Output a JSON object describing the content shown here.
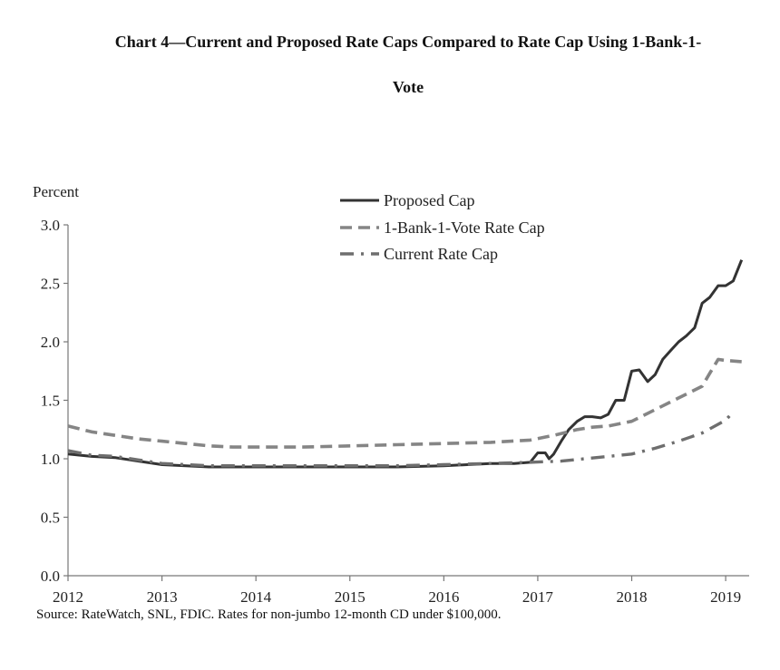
{
  "chart_data": {
    "type": "line",
    "title": "Chart 4—Current and Proposed Rate Caps Compared to Rate Cap Using 1-Bank-1-",
    "title_line2": "Vote",
    "ylabel": "Percent",
    "xlabel": "",
    "ylim": [
      0,
      3.0
    ],
    "xlim": [
      2012,
      2019.25
    ],
    "yticks": [
      "0.0",
      "0.5",
      "1.0",
      "1.5",
      "2.0",
      "2.5",
      "3.0"
    ],
    "xticks": [
      "2012",
      "2013",
      "2014",
      "2015",
      "2016",
      "2017",
      "2018",
      "2019"
    ],
    "grid": false,
    "legend_position": "top-center",
    "source": "Source: RateWatch, SNL, FDIC. Rates for non-jumbo 12-month CD under $100,000.",
    "series": [
      {
        "name": "Proposed Cap",
        "style": "solid",
        "color": "#333333",
        "x": [
          2012.0,
          2012.25,
          2012.5,
          2012.75,
          2013.0,
          2013.25,
          2013.5,
          2013.75,
          2014.0,
          2014.5,
          2015.0,
          2015.5,
          2016.0,
          2016.25,
          2016.5,
          2016.75,
          2016.92,
          2017.0,
          2017.08,
          2017.12,
          2017.17,
          2017.25,
          2017.33,
          2017.42,
          2017.5,
          2017.58,
          2017.67,
          2017.75,
          2017.83,
          2017.92,
          2018.0,
          2018.08,
          2018.17,
          2018.25,
          2018.33,
          2018.42,
          2018.5,
          2018.58,
          2018.67,
          2018.75,
          2018.83,
          2018.92,
          2019.0,
          2019.08,
          2019.17
        ],
        "values": [
          1.04,
          1.02,
          1.01,
          0.98,
          0.95,
          0.94,
          0.93,
          0.93,
          0.93,
          0.93,
          0.93,
          0.93,
          0.94,
          0.95,
          0.96,
          0.96,
          0.97,
          1.05,
          1.05,
          1.0,
          1.04,
          1.15,
          1.25,
          1.32,
          1.36,
          1.36,
          1.35,
          1.38,
          1.5,
          1.5,
          1.75,
          1.76,
          1.66,
          1.72,
          1.85,
          1.93,
          2.0,
          2.05,
          2.12,
          2.33,
          2.38,
          2.48,
          2.48,
          2.52,
          2.7
        ]
      },
      {
        "name": "1-Bank-1-Vote Rate Cap",
        "style": "dashed",
        "color": "#858585",
        "x": [
          2012.0,
          2012.25,
          2012.5,
          2012.75,
          2013.0,
          2013.25,
          2013.5,
          2013.75,
          2014.0,
          2014.5,
          2015.0,
          2015.5,
          2016.0,
          2016.5,
          2016.92,
          2017.17,
          2017.42,
          2017.58,
          2017.75,
          2018.0,
          2018.25,
          2018.5,
          2018.75,
          2018.83,
          2018.92,
          2019.0,
          2019.17
        ],
        "values": [
          1.28,
          1.23,
          1.2,
          1.17,
          1.15,
          1.13,
          1.11,
          1.1,
          1.1,
          1.1,
          1.11,
          1.12,
          1.13,
          1.14,
          1.16,
          1.2,
          1.25,
          1.27,
          1.28,
          1.32,
          1.42,
          1.52,
          1.62,
          1.73,
          1.85,
          1.84,
          1.83
        ]
      },
      {
        "name": "Current Rate Cap",
        "style": "dashdot",
        "color": "#6e6e6e",
        "x": [
          2012.0,
          2012.25,
          2012.5,
          2012.75,
          2013.0,
          2013.25,
          2013.5,
          2013.75,
          2014.0,
          2014.5,
          2015.0,
          2015.5,
          2016.0,
          2016.5,
          2016.92,
          2017.25,
          2017.5,
          2017.75,
          2018.0,
          2018.25,
          2018.5,
          2018.75,
          2019.0,
          2019.08
        ],
        "values": [
          1.07,
          1.03,
          1.02,
          0.99,
          0.96,
          0.95,
          0.94,
          0.94,
          0.94,
          0.94,
          0.94,
          0.94,
          0.95,
          0.96,
          0.97,
          0.98,
          1.0,
          1.02,
          1.04,
          1.09,
          1.15,
          1.22,
          1.33,
          1.4
        ]
      }
    ]
  }
}
